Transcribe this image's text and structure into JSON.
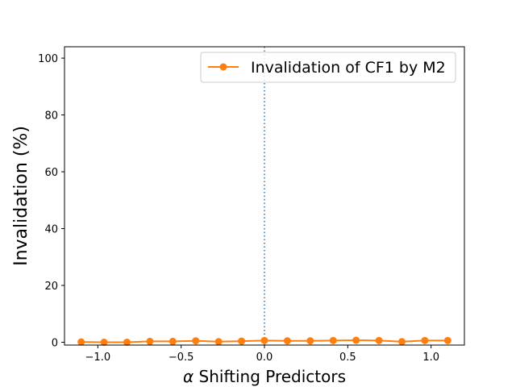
{
  "chart_data": {
    "type": "line",
    "title": "",
    "xlabel_symbol": "α",
    "xlabel_text": " Shifting Predictors",
    "ylabel": "Invalidation (%)",
    "xlim": [
      -1.2,
      1.2
    ],
    "ylim": [
      -1,
      104
    ],
    "xticks": [
      -1.0,
      -0.5,
      0.0,
      0.5,
      1.0
    ],
    "xtick_labels": [
      "−1.0",
      "−0.5",
      "0.0",
      "0.5",
      "1.0"
    ],
    "yticks": [
      0,
      20,
      40,
      60,
      80,
      100
    ],
    "ytick_labels": [
      "0",
      "20",
      "40",
      "60",
      "80",
      "100"
    ],
    "grid": false,
    "legend_position": "top-right",
    "vline": {
      "x": 0.0,
      "color": "#1f77b4",
      "style": "dotted"
    },
    "series": [
      {
        "name": "Invalidation of CF1 by M2",
        "color": "#ff7f0e",
        "marker": "circle",
        "x": [
          -1.1,
          -0.9625,
          -0.825,
          -0.6875,
          -0.55,
          -0.4125,
          -0.275,
          -0.1375,
          0.0,
          0.1375,
          0.275,
          0.4125,
          0.55,
          0.6875,
          0.825,
          0.9625,
          1.1
        ],
        "y": [
          0.1,
          0.0,
          0.0,
          0.3,
          0.3,
          0.5,
          0.2,
          0.4,
          0.6,
          0.5,
          0.5,
          0.6,
          0.7,
          0.6,
          0.2,
          0.6,
          0.6
        ]
      }
    ]
  }
}
